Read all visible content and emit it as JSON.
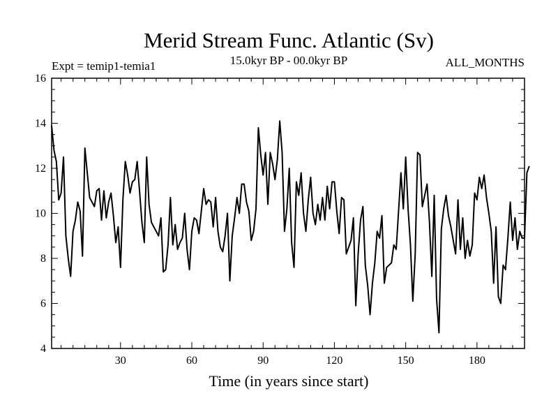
{
  "chart_data": {
    "type": "line",
    "title": "Merid Stream Func. Atlantic (Sv)",
    "subtitle": "15.0kyr BP - 00.0kyr BP",
    "left_label": "Expt = temip1-temia1",
    "right_label": "ALL_MONTHS",
    "xlabel": "Time (in years since start)",
    "ylabel": "",
    "xlim": [
      1,
      200
    ],
    "ylim": [
      4,
      16
    ],
    "x_ticks": [
      30,
      60,
      90,
      120,
      150,
      180
    ],
    "y_ticks": [
      4,
      6,
      8,
      10,
      12,
      14,
      16
    ],
    "grid": false,
    "series": [
      {
        "name": "Merid Stream Func. Atlantic",
        "color": "#000000",
        "values": [
          13.9,
          12.8,
          12.3,
          10.6,
          10.9,
          12.5,
          9.0,
          8.0,
          7.2,
          9.2,
          9.7,
          10.5,
          10.1,
          8.1,
          12.9,
          11.8,
          10.7,
          10.5,
          10.3,
          11.0,
          11.1,
          9.7,
          11.0,
          9.8,
          10.5,
          10.9,
          9.9,
          8.7,
          9.4,
          7.6,
          10.6,
          12.3,
          11.7,
          10.9,
          11.4,
          11.5,
          12.3,
          11.0,
          9.6,
          8.7,
          12.5,
          10.4,
          9.6,
          9.4,
          9.2,
          9.0,
          9.8,
          7.4,
          7.5,
          8.6,
          10.7,
          8.6,
          9.5,
          8.4,
          8.7,
          8.9,
          10.0,
          8.4,
          7.5,
          9.2,
          9.8,
          9.7,
          9.1,
          10.1,
          11.1,
          10.4,
          10.6,
          10.5,
          9.4,
          10.7,
          9.2,
          8.5,
          8.3,
          9.0,
          10.0,
          7.0,
          9.0,
          9.8,
          10.7,
          10.0,
          11.3,
          11.3,
          10.5,
          10.1,
          8.8,
          9.2,
          10.2,
          13.8,
          12.6,
          11.7,
          12.7,
          10.4,
          12.7,
          12.2,
          11.5,
          12.4,
          14.1,
          12.7,
          9.2,
          10.2,
          12.0,
          8.7,
          7.6,
          11.4,
          10.8,
          11.8,
          10.0,
          9.2,
          10.6,
          11.6,
          10.0,
          9.5,
          10.4,
          9.7,
          10.7,
          9.7,
          11.2,
          10.2,
          11.4,
          11.4,
          10.1,
          9.1,
          10.7,
          10.6,
          8.2,
          8.5,
          8.8,
          9.8,
          5.9,
          8.2,
          9.7,
          10.3,
          7.7,
          6.8,
          5.5,
          6.9,
          7.8,
          9.2,
          8.9,
          9.9,
          6.9,
          7.6,
          7.7,
          7.8,
          8.6,
          8.4,
          10.1,
          11.8,
          10.2,
          12.5,
          10.2,
          8.6,
          6.1,
          8.2,
          12.7,
          12.6,
          10.3,
          10.8,
          11.3,
          9.6,
          7.2,
          10.8,
          6.2,
          4.7,
          9.3,
          10.2,
          10.8,
          9.9,
          9.4,
          8.8,
          8.2,
          10.6,
          8.4,
          9.8,
          8.0,
          8.8,
          8.1,
          8.6,
          10.9,
          10.6,
          11.6,
          11.1,
          11.7,
          10.7,
          10.0,
          9.2,
          6.9,
          9.4,
          6.3,
          6.0,
          7.7,
          7.5,
          8.9,
          10.5,
          8.8,
          9.8,
          8.4,
          9.2,
          8.9,
          8.9,
          11.8,
          12.1
        ]
      }
    ]
  }
}
